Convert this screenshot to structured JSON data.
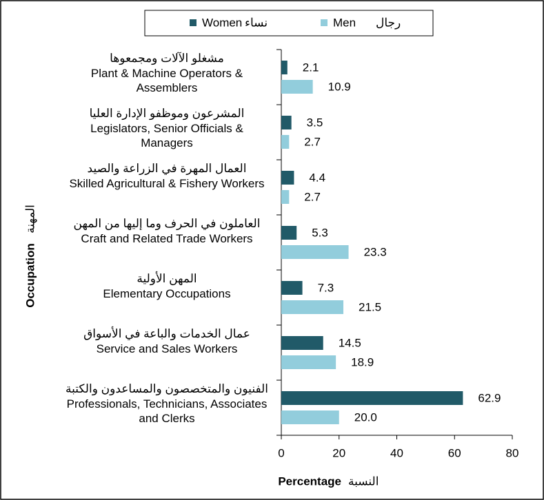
{
  "chart_data": {
    "type": "hbar",
    "categories": [
      "Plant & Machine Operators & Assemblers",
      "Legislators, Senior Officials & Managers",
      "Skilled Agricultural & Fishery Workers",
      "Craft and Related Trade Workers",
      "Elementary Occupations",
      "Service and Sales Workers",
      "Professionals, Technicians, Associates and Clerks"
    ],
    "categories_ar": [
      "مشغلو الآلات ومجمعوها",
      "المشرعون وموظفو الإدارة العليا",
      "العمال المهرة في الزراعة والصيد",
      "العاملون في الحرف وما إليها من المهن",
      "المهن الأولية",
      "عمال الخدمات والباعة في الأسواق",
      "الفنيون والمتخصصون والمساعدون والكتبة"
    ],
    "series": [
      {
        "name": "Women",
        "name_ar": "نساء",
        "color": "#215a68",
        "values": [
          2.1,
          3.5,
          4.4,
          5.3,
          7.3,
          14.5,
          62.9
        ]
      },
      {
        "name": "Men",
        "name_ar": "رجال",
        "color": "#92cddc",
        "values": [
          10.9,
          2.7,
          2.7,
          23.3,
          21.5,
          18.9,
          20.0
        ],
        "value_labels": [
          "10.9",
          "2.7",
          "2.7",
          "23.3",
          "21.5",
          "18.9",
          "20.0"
        ]
      }
    ],
    "xlabel": "Percentage",
    "xlabel_ar": "النسبة",
    "ylabel": "Occupation",
    "ylabel_ar": "المهنة",
    "xlim": [
      0,
      80
    ],
    "xticks": [
      0,
      20,
      40,
      60,
      80
    ],
    "legend": "top"
  }
}
